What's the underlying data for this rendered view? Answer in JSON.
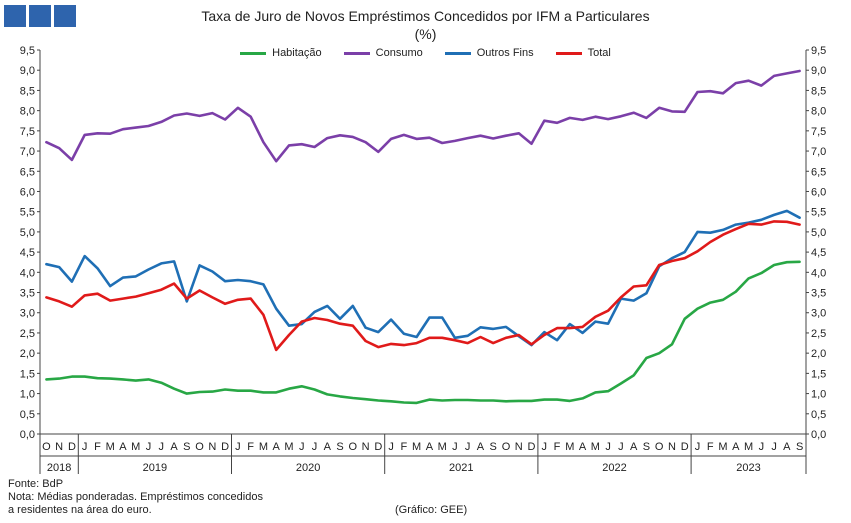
{
  "chart_data": {
    "type": "line",
    "title": "Taxa de Juro de Novos Empréstimos Concedidos por IFM a Particulares",
    "subtitle": "(%)",
    "ylim": [
      0,
      9.5
    ],
    "y_ticks": [
      "0,0",
      "0,5",
      "1,0",
      "1,5",
      "2,0",
      "2,5",
      "3,0",
      "3,5",
      "4,0",
      "4,5",
      "5,0",
      "5,5",
      "6,0",
      "6,5",
      "7,0",
      "7,5",
      "8,0",
      "8,5",
      "9,0",
      "9,5"
    ],
    "grid": false,
    "legend_position": "top",
    "month_labels": [
      "O",
      "N",
      "D",
      "J",
      "F",
      "M",
      "A",
      "M",
      "J",
      "J",
      "A",
      "S",
      "O",
      "N",
      "D",
      "J",
      "F",
      "M",
      "A",
      "M",
      "J",
      "J",
      "A",
      "S",
      "O",
      "N",
      "D",
      "J",
      "F",
      "M",
      "A",
      "M",
      "J",
      "J",
      "A",
      "S",
      "O",
      "N",
      "D",
      "J",
      "F",
      "M",
      "A",
      "M",
      "J",
      "J",
      "A",
      "S",
      "O",
      "N",
      "D",
      "J",
      "F",
      "M",
      "A",
      "M",
      "J",
      "J",
      "A",
      "S"
    ],
    "years": [
      {
        "label": "2018",
        "start": 0,
        "count": 3
      },
      {
        "label": "2019",
        "start": 3,
        "count": 12
      },
      {
        "label": "2020",
        "start": 15,
        "count": 12
      },
      {
        "label": "2021",
        "start": 27,
        "count": 12
      },
      {
        "label": "2022",
        "start": 39,
        "count": 12
      },
      {
        "label": "2023",
        "start": 51,
        "count": 9
      }
    ],
    "series": [
      {
        "name": "Habitação",
        "color": "#28a745",
        "values": [
          1.35,
          1.37,
          1.42,
          1.42,
          1.38,
          1.37,
          1.35,
          1.32,
          1.35,
          1.27,
          1.12,
          1.0,
          1.04,
          1.05,
          1.1,
          1.07,
          1.07,
          1.03,
          1.03,
          1.12,
          1.18,
          1.1,
          0.98,
          0.93,
          0.89,
          0.86,
          0.83,
          0.81,
          0.78,
          0.77,
          0.85,
          0.83,
          0.84,
          0.84,
          0.83,
          0.83,
          0.81,
          0.82,
          0.82,
          0.85,
          0.85,
          0.82,
          0.88,
          1.03,
          1.06,
          1.25,
          1.45,
          1.88,
          2.0,
          2.22,
          2.85,
          3.1,
          3.25,
          3.32,
          3.52,
          3.85,
          3.98,
          4.18,
          4.25,
          4.26
        ]
      },
      {
        "name": "Consumo",
        "color": "#7b3fa8",
        "values": [
          7.22,
          7.07,
          6.78,
          7.4,
          7.44,
          7.43,
          7.54,
          7.58,
          7.62,
          7.72,
          7.88,
          7.93,
          7.87,
          7.94,
          7.78,
          8.07,
          7.85,
          7.22,
          6.75,
          7.14,
          7.17,
          7.1,
          7.32,
          7.39,
          7.35,
          7.22,
          6.98,
          7.3,
          7.4,
          7.3,
          7.33,
          7.2,
          7.25,
          7.32,
          7.38,
          7.31,
          7.38,
          7.44,
          7.18,
          7.75,
          7.7,
          7.82,
          7.77,
          7.85,
          7.79,
          7.86,
          7.95,
          7.82,
          8.07,
          7.98,
          7.97,
          8.46,
          8.48,
          8.43,
          8.68,
          8.74,
          8.62,
          8.86,
          8.92,
          8.98
        ]
      },
      {
        "name": "Outros Fins",
        "color": "#1f6fb5",
        "values": [
          4.2,
          4.13,
          3.77,
          4.4,
          4.1,
          3.66,
          3.87,
          3.9,
          4.07,
          4.22,
          4.27,
          3.28,
          4.17,
          4.02,
          3.78,
          3.81,
          3.78,
          3.7,
          3.1,
          2.68,
          2.72,
          3.02,
          3.17,
          2.85,
          3.17,
          2.63,
          2.52,
          2.83,
          2.48,
          2.4,
          2.88,
          2.88,
          2.38,
          2.43,
          2.64,
          2.6,
          2.65,
          2.42,
          2.2,
          2.52,
          2.32,
          2.72,
          2.5,
          2.78,
          2.73,
          3.35,
          3.3,
          3.48,
          4.15,
          4.35,
          4.5,
          5.0,
          4.98,
          5.05,
          5.18,
          5.23,
          5.3,
          5.42,
          5.52,
          5.35
        ]
      },
      {
        "name": "Total",
        "color": "#e01a1a",
        "values": [
          3.38,
          3.28,
          3.15,
          3.43,
          3.47,
          3.3,
          3.35,
          3.4,
          3.48,
          3.57,
          3.72,
          3.35,
          3.55,
          3.38,
          3.22,
          3.32,
          3.35,
          2.95,
          2.08,
          2.45,
          2.78,
          2.87,
          2.82,
          2.73,
          2.68,
          2.3,
          2.15,
          2.23,
          2.2,
          2.25,
          2.38,
          2.38,
          2.32,
          2.25,
          2.4,
          2.25,
          2.38,
          2.45,
          2.22,
          2.45,
          2.62,
          2.62,
          2.65,
          2.9,
          3.05,
          3.38,
          3.65,
          3.68,
          4.18,
          4.28,
          4.35,
          4.52,
          4.75,
          4.93,
          5.07,
          5.2,
          5.18,
          5.26,
          5.25,
          5.18
        ]
      }
    ]
  },
  "footer": {
    "source": "Fonte: BdP",
    "note_line1": "Nota: Médias ponderadas. Empréstimos concedidos",
    "note_line2": "a residentes na área do euro.",
    "credit": "(Gráfico: GEE)"
  }
}
